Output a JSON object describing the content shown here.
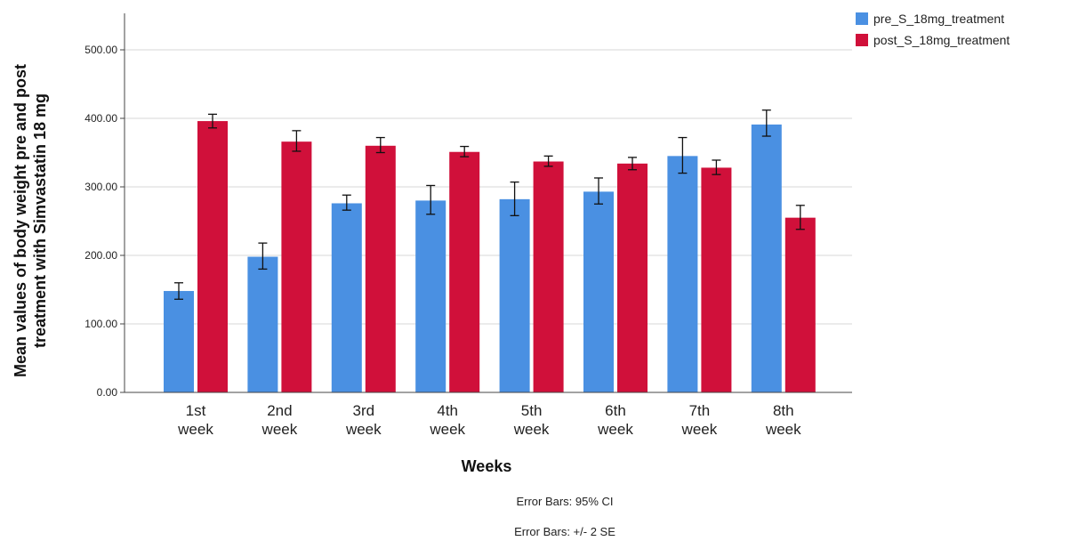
{
  "chart_data": {
    "type": "bar",
    "categories": [
      [
        "1st",
        "week"
      ],
      [
        "2nd",
        "week"
      ],
      [
        "3rd",
        "week"
      ],
      [
        "4th",
        "week"
      ],
      [
        "5th",
        "week"
      ],
      [
        "6th",
        "week"
      ],
      [
        "7th",
        "week"
      ],
      [
        "8th",
        "week"
      ]
    ],
    "series": [
      {
        "name": "pre_S_18mg_treatment",
        "color": "#4A90E2",
        "values": [
          148,
          198,
          276,
          280,
          282,
          293,
          345,
          391
        ],
        "err_low": [
          136,
          180,
          266,
          260,
          258,
          275,
          320,
          374
        ],
        "err_high": [
          160,
          218,
          288,
          302,
          307,
          313,
          372,
          412
        ]
      },
      {
        "name": "post_S_18mg_treatment",
        "color": "#D0103A",
        "values": [
          396,
          366,
          360,
          351,
          337,
          334,
          328,
          255
        ],
        "err_low": [
          386,
          352,
          350,
          344,
          330,
          325,
          318,
          238
        ],
        "err_high": [
          406,
          382,
          372,
          359,
          345,
          343,
          339,
          273
        ]
      }
    ],
    "ylim": [
      0,
      500
    ],
    "yticks": [
      "0.00",
      "100.00",
      "200.00",
      "300.00",
      "400.00",
      "500.00"
    ],
    "ytick_values": [
      0,
      100,
      200,
      300,
      400,
      500
    ],
    "xlabel": "Weeks",
    "ylabel_lines": [
      "Mean values of body weight pre and post",
      "treatment with Simvastatin 18 mg"
    ],
    "notes": [
      "Error Bars: 95% CI",
      "Error Bars: +/- 2 SE"
    ],
    "grid": true,
    "legend_position": "top-right"
  }
}
